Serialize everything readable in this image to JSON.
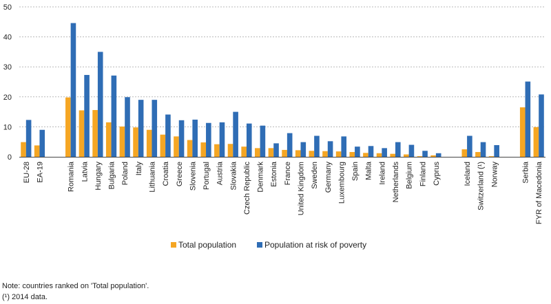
{
  "chart_data": {
    "type": "bar",
    "title": "",
    "xlabel": "",
    "ylabel": "",
    "ylim": [
      0,
      50
    ],
    "yticks": [
      0,
      10,
      20,
      30,
      40,
      50
    ],
    "ytick_labels": [
      "0",
      "10",
      "20",
      "30",
      "40",
      "50"
    ],
    "grid": true,
    "legend_position": "bottom-center",
    "categories": [
      "EU-28",
      "EA-19",
      "Romania",
      "Latvia",
      "Hungary",
      "Bulgaria",
      "Poland",
      "Italy",
      "Lithuania",
      "Croatia",
      "Greece",
      "Slovenia",
      "Portugal",
      "Austria",
      "Slovakia",
      "Czech Republic",
      "Denmark",
      "Estonia",
      "France",
      "United Kingdom",
      "Sweden",
      "Germany",
      "Luxembourg",
      "Spain",
      "Malta",
      "Ireland",
      "Netherlands",
      "Belgium",
      "Finland",
      "Cyprus",
      "Iceland",
      "Switzerland (¹)",
      "Norway",
      "Serbia",
      "FYR of Macedonia"
    ],
    "groups": [
      2,
      28,
      3,
      2
    ],
    "series": [
      {
        "name": "Total population",
        "color": "#f5a623",
        "values": [
          4.9,
          3.8,
          19.8,
          15.5,
          15.6,
          11.5,
          10.1,
          9.8,
          9.0,
          7.4,
          6.8,
          5.6,
          4.8,
          4.2,
          4.3,
          3.4,
          2.9,
          2.9,
          2.3,
          2.2,
          2.0,
          1.9,
          1.8,
          1.6,
          1.3,
          1.2,
          1.0,
          0.8,
          0.2,
          0.5,
          2.5,
          1.6,
          0.2,
          16.5,
          9.9
        ]
      },
      {
        "name": "Population at risk of poverty",
        "color": "#2f6db5",
        "values": [
          12.3,
          9.0,
          44.6,
          27.3,
          35.0,
          27.1,
          19.9,
          19.0,
          19.0,
          14.1,
          12.2,
          12.4,
          11.3,
          11.5,
          15.0,
          11.1,
          10.4,
          4.5,
          7.9,
          4.9,
          7.0,
          5.2,
          6.8,
          3.4,
          3.6,
          2.9,
          4.9,
          4.0,
          2.0,
          1.2,
          7.0,
          4.9,
          3.9,
          25.1,
          20.8
        ]
      }
    ]
  },
  "notes": [
    "Note: countries ranked on 'Total population'.",
    "(¹) 2014 data."
  ]
}
